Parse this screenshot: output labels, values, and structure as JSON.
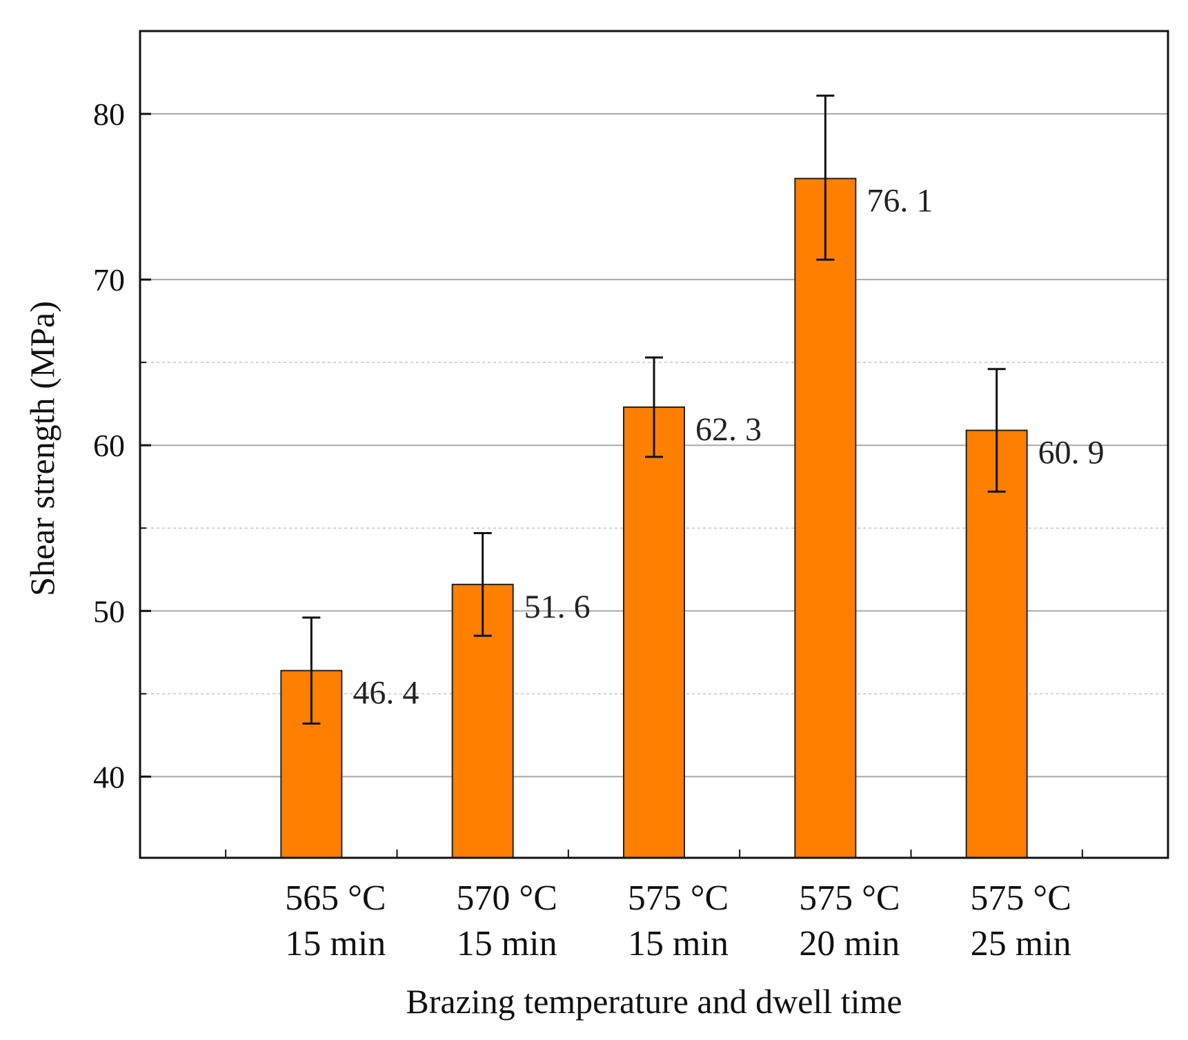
{
  "chart_data": {
    "type": "bar",
    "title": "",
    "xlabel": "Brazing temperature and dwell time",
    "ylabel": "Shear strength (MPa)",
    "categories": [
      [
        "565 °C",
        "15 min"
      ],
      [
        "570 °C",
        "15 min"
      ],
      [
        "575 °C",
        "15 min"
      ],
      [
        "575 °C",
        "20 min"
      ],
      [
        "575 °C",
        "25 min"
      ]
    ],
    "values": [
      46.4,
      51.6,
      62.3,
      76.1,
      60.9
    ],
    "value_labels": [
      "46. 4",
      "51. 6",
      "62. 3",
      "76. 1",
      "60. 9"
    ],
    "error_upper": [
      49.6,
      54.7,
      65.3,
      81.1,
      64.6
    ],
    "error_lower": [
      43.2,
      48.5,
      59.3,
      71.2,
      57.2
    ],
    "ylim": [
      35.1,
      85.0
    ],
    "yticks": [
      40,
      50,
      60,
      70,
      80
    ],
    "minor_grid": [
      45,
      55,
      65
    ],
    "xlim": [
      0,
      6
    ],
    "grid": true,
    "bar_color": "#FF7F00"
  }
}
